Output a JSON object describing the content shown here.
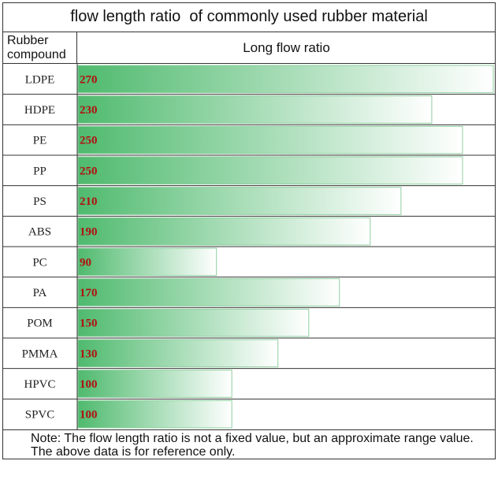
{
  "header": {
    "title": "flow length ratio  of commonly used rubber material",
    "col1": "Rubber compound",
    "col2": "Long flow ratio"
  },
  "note": "Note: The flow length ratio is not a fixed value, but an approximate range value. The above data is for reference only.",
  "colors": {
    "bar_dark": "#4fba6e",
    "bar_light": "#ffffff",
    "value_text": "#b01010",
    "grid": "#333333"
  },
  "chart_data": {
    "type": "bar",
    "orientation": "horizontal",
    "title": "flow length ratio  of commonly used rubber material",
    "xlabel": "Long flow ratio",
    "ylabel": "Rubber compound",
    "categories": [
      "LDPE",
      "HDPE",
      "PE",
      "PP",
      "PS",
      "ABS",
      "PC",
      "PA",
      "POM",
      "PMMA",
      "HPVC",
      "SPVC"
    ],
    "values": [
      270,
      230,
      250,
      250,
      210,
      190,
      90,
      170,
      150,
      130,
      100,
      100
    ],
    "xlim": [
      0,
      270
    ],
    "data_labels": true,
    "grid": false
  }
}
